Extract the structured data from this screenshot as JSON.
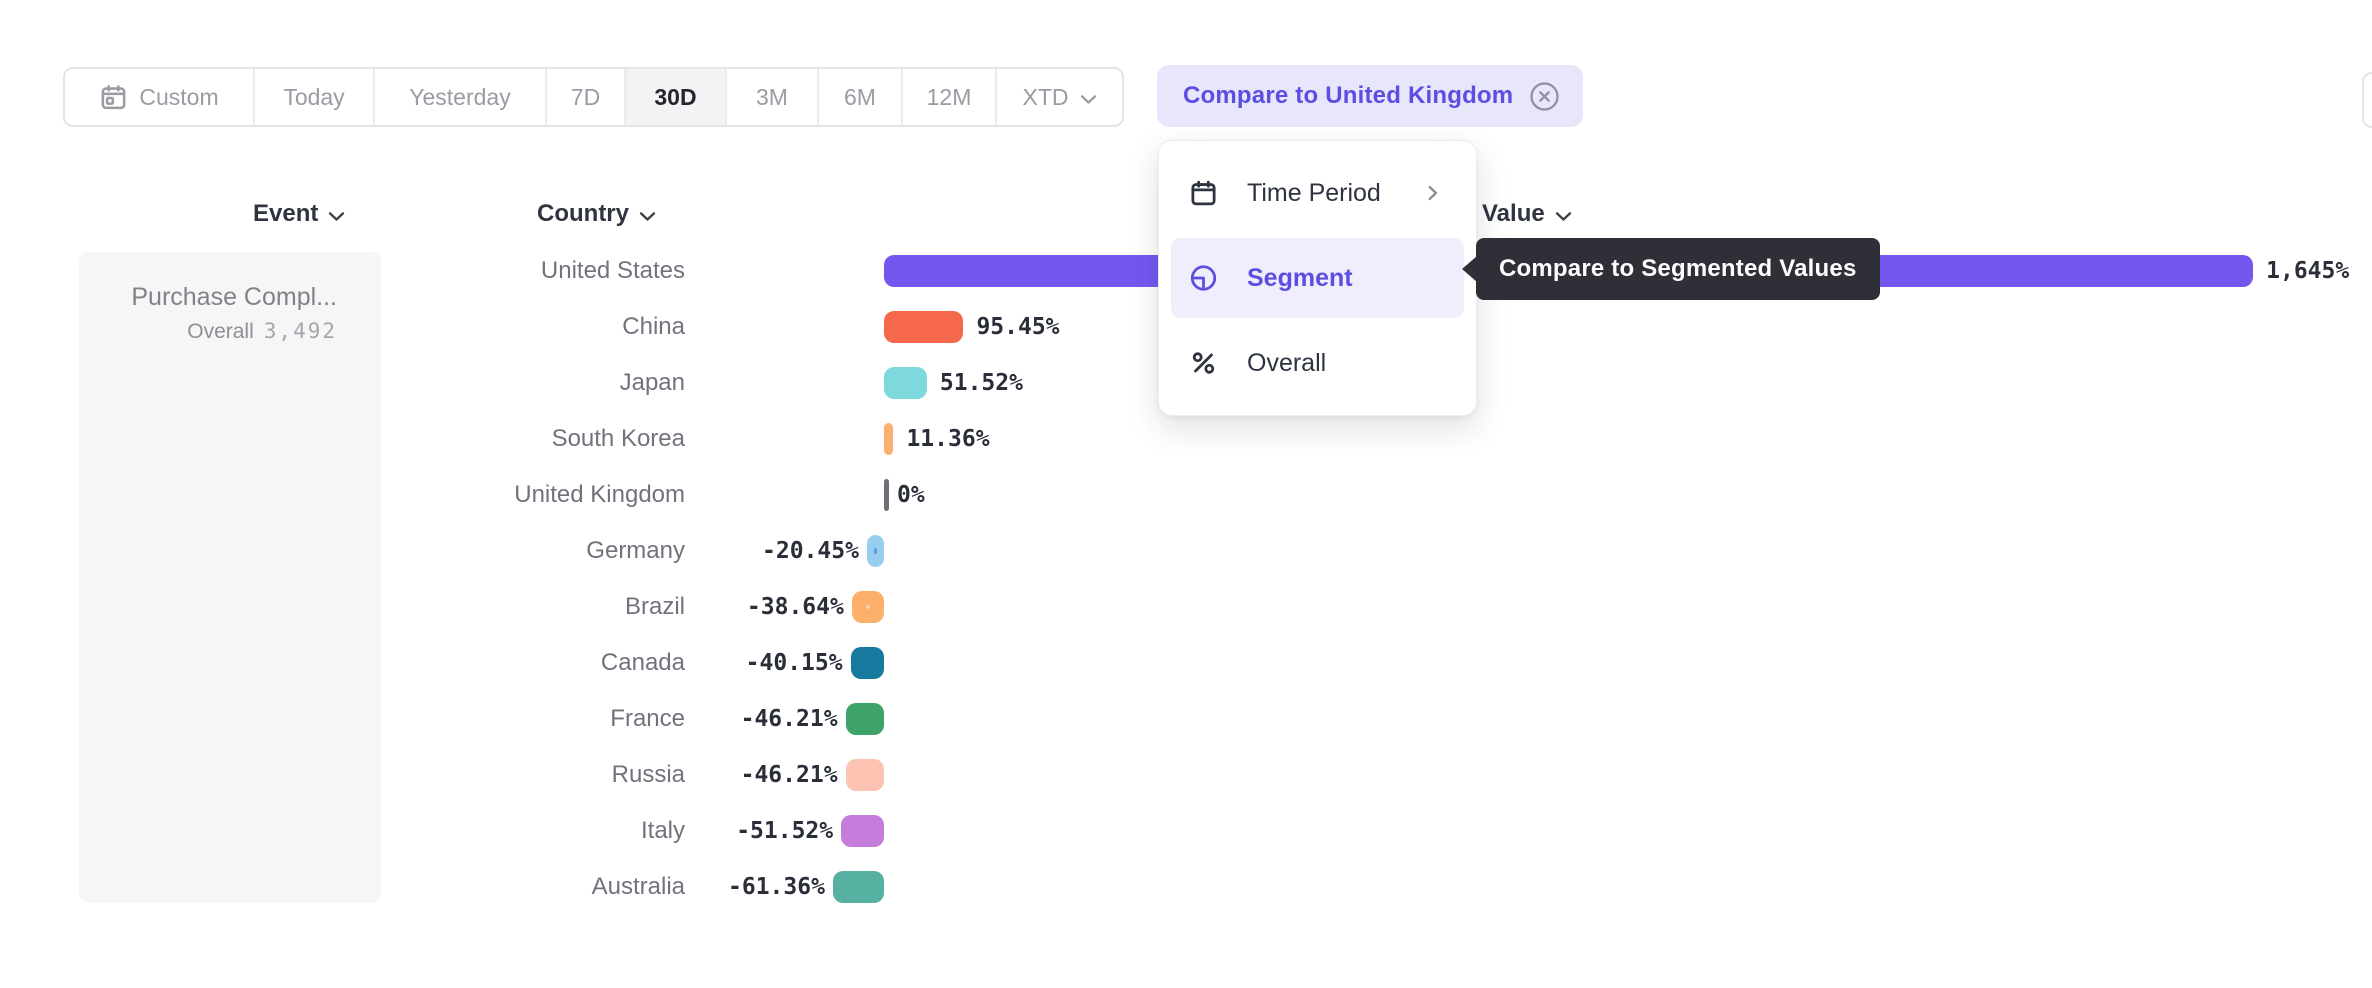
{
  "toolbar": {
    "periods": [
      {
        "label": "Custom",
        "icon": "calendar"
      },
      {
        "label": "Today"
      },
      {
        "label": "Yesterday"
      },
      {
        "label": "7D"
      },
      {
        "label": "30D",
        "selected": true
      },
      {
        "label": "3M"
      },
      {
        "label": "6M"
      },
      {
        "label": "12M"
      },
      {
        "label": "XTD",
        "dropdown": true
      }
    ]
  },
  "compare_chip": {
    "label": "Compare to United Kingdom",
    "close_icon": "circle-x"
  },
  "columns": {
    "event": "Event",
    "country": "Country",
    "value": "Value"
  },
  "event_panel": {
    "event_name": "Purchase Compl...",
    "segment_label": "Overall",
    "segment_value": "3,492"
  },
  "dropdown_menu": {
    "items": [
      {
        "label": "Time Period",
        "icon": "calendar-dark",
        "submenu": true
      },
      {
        "label": "Segment",
        "icon": "segment",
        "selected": true
      },
      {
        "label": "Overall",
        "icon": "percent"
      }
    ]
  },
  "tooltip": {
    "text": "Compare to Segmented Values"
  },
  "chart_data": {
    "type": "bar",
    "orientation": "horizontal",
    "unit": "percent change",
    "xlabel": "Value",
    "ylabel": "Country",
    "xlim": [
      -62,
      1645
    ],
    "grid": false,
    "categories": [
      "United States",
      "China",
      "Japan",
      "South Korea",
      "United Kingdom",
      "Germany",
      "Brazil",
      "Canada",
      "France",
      "Russia",
      "Italy",
      "Australia"
    ],
    "values": [
      1645,
      95.45,
      51.52,
      11.36,
      0,
      -20.45,
      -38.64,
      -40.15,
      -46.21,
      -46.21,
      -51.52,
      -61.36
    ],
    "value_labels": [
      "1,645%",
      "95.45%",
      "51.52%",
      "11.36%",
      "0%",
      "-20.45%",
      "-38.64%",
      "-40.15%",
      "-46.21%",
      "-46.21%",
      "-51.52%",
      "-61.36%"
    ],
    "bar_colors": [
      "#7557F0",
      "#F6684B",
      "#7ED9DC",
      "#FBB072",
      "#6E6E76",
      "#97CEF0",
      "#FBB06C",
      "#17799E",
      "#3EA368",
      "#FCC2B2",
      "#C67CDB",
      "#56B1A2"
    ],
    "bar_patterns": [
      null,
      null,
      null,
      null,
      "tick",
      "dots",
      "dots",
      null,
      null,
      null,
      null,
      null
    ],
    "pattern_dot_colors": [
      null,
      null,
      null,
      null,
      null,
      "#5E9FDC",
      "#FDDCB4",
      null,
      null,
      null,
      null,
      null
    ]
  }
}
